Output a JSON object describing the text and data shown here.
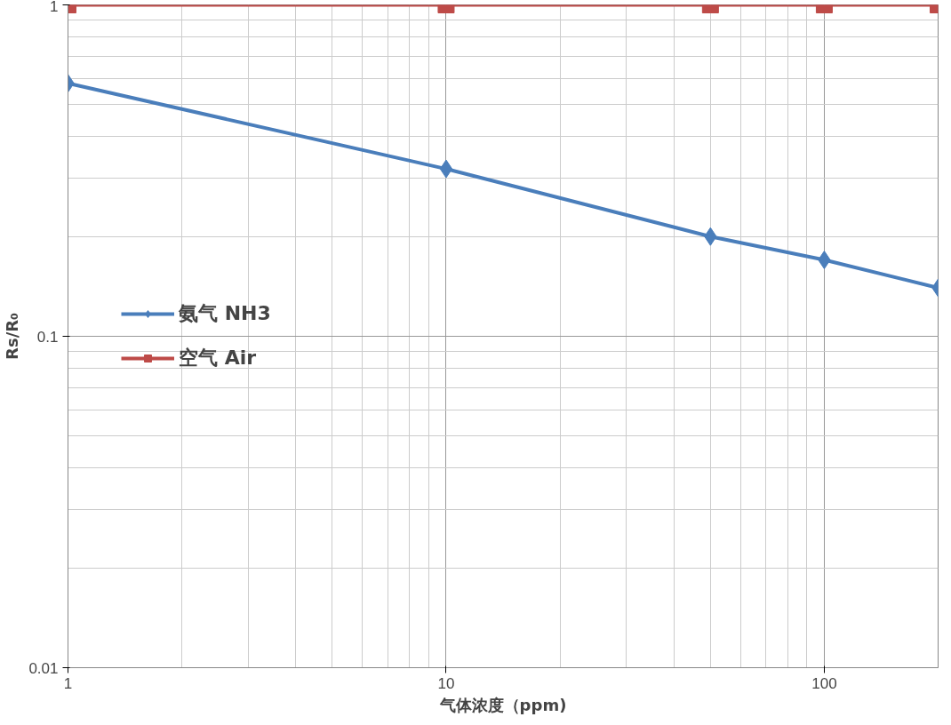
{
  "chart_data": {
    "type": "line",
    "xlabel": "气体浓度（ppm)",
    "ylabel": "Rs/R₀",
    "x": [
      1,
      10,
      50,
      100,
      200
    ],
    "series": [
      {
        "name": "氨气 NH3",
        "color": "#4a7ebb",
        "values": [
          0.58,
          0.32,
          0.2,
          0.17,
          0.14
        ],
        "marker": "diamond"
      },
      {
        "name": "空气 Air",
        "color": "#be4b48",
        "values": [
          1,
          1,
          1,
          1,
          1
        ],
        "marker": "square"
      }
    ],
    "log": "xy",
    "xlim": [
      1,
      200
    ],
    "ylim": [
      0.01,
      1
    ],
    "xticks": [
      1,
      10,
      100
    ],
    "yticks": [
      0.01,
      0.1,
      1
    ],
    "grid": true,
    "legend": "left"
  }
}
